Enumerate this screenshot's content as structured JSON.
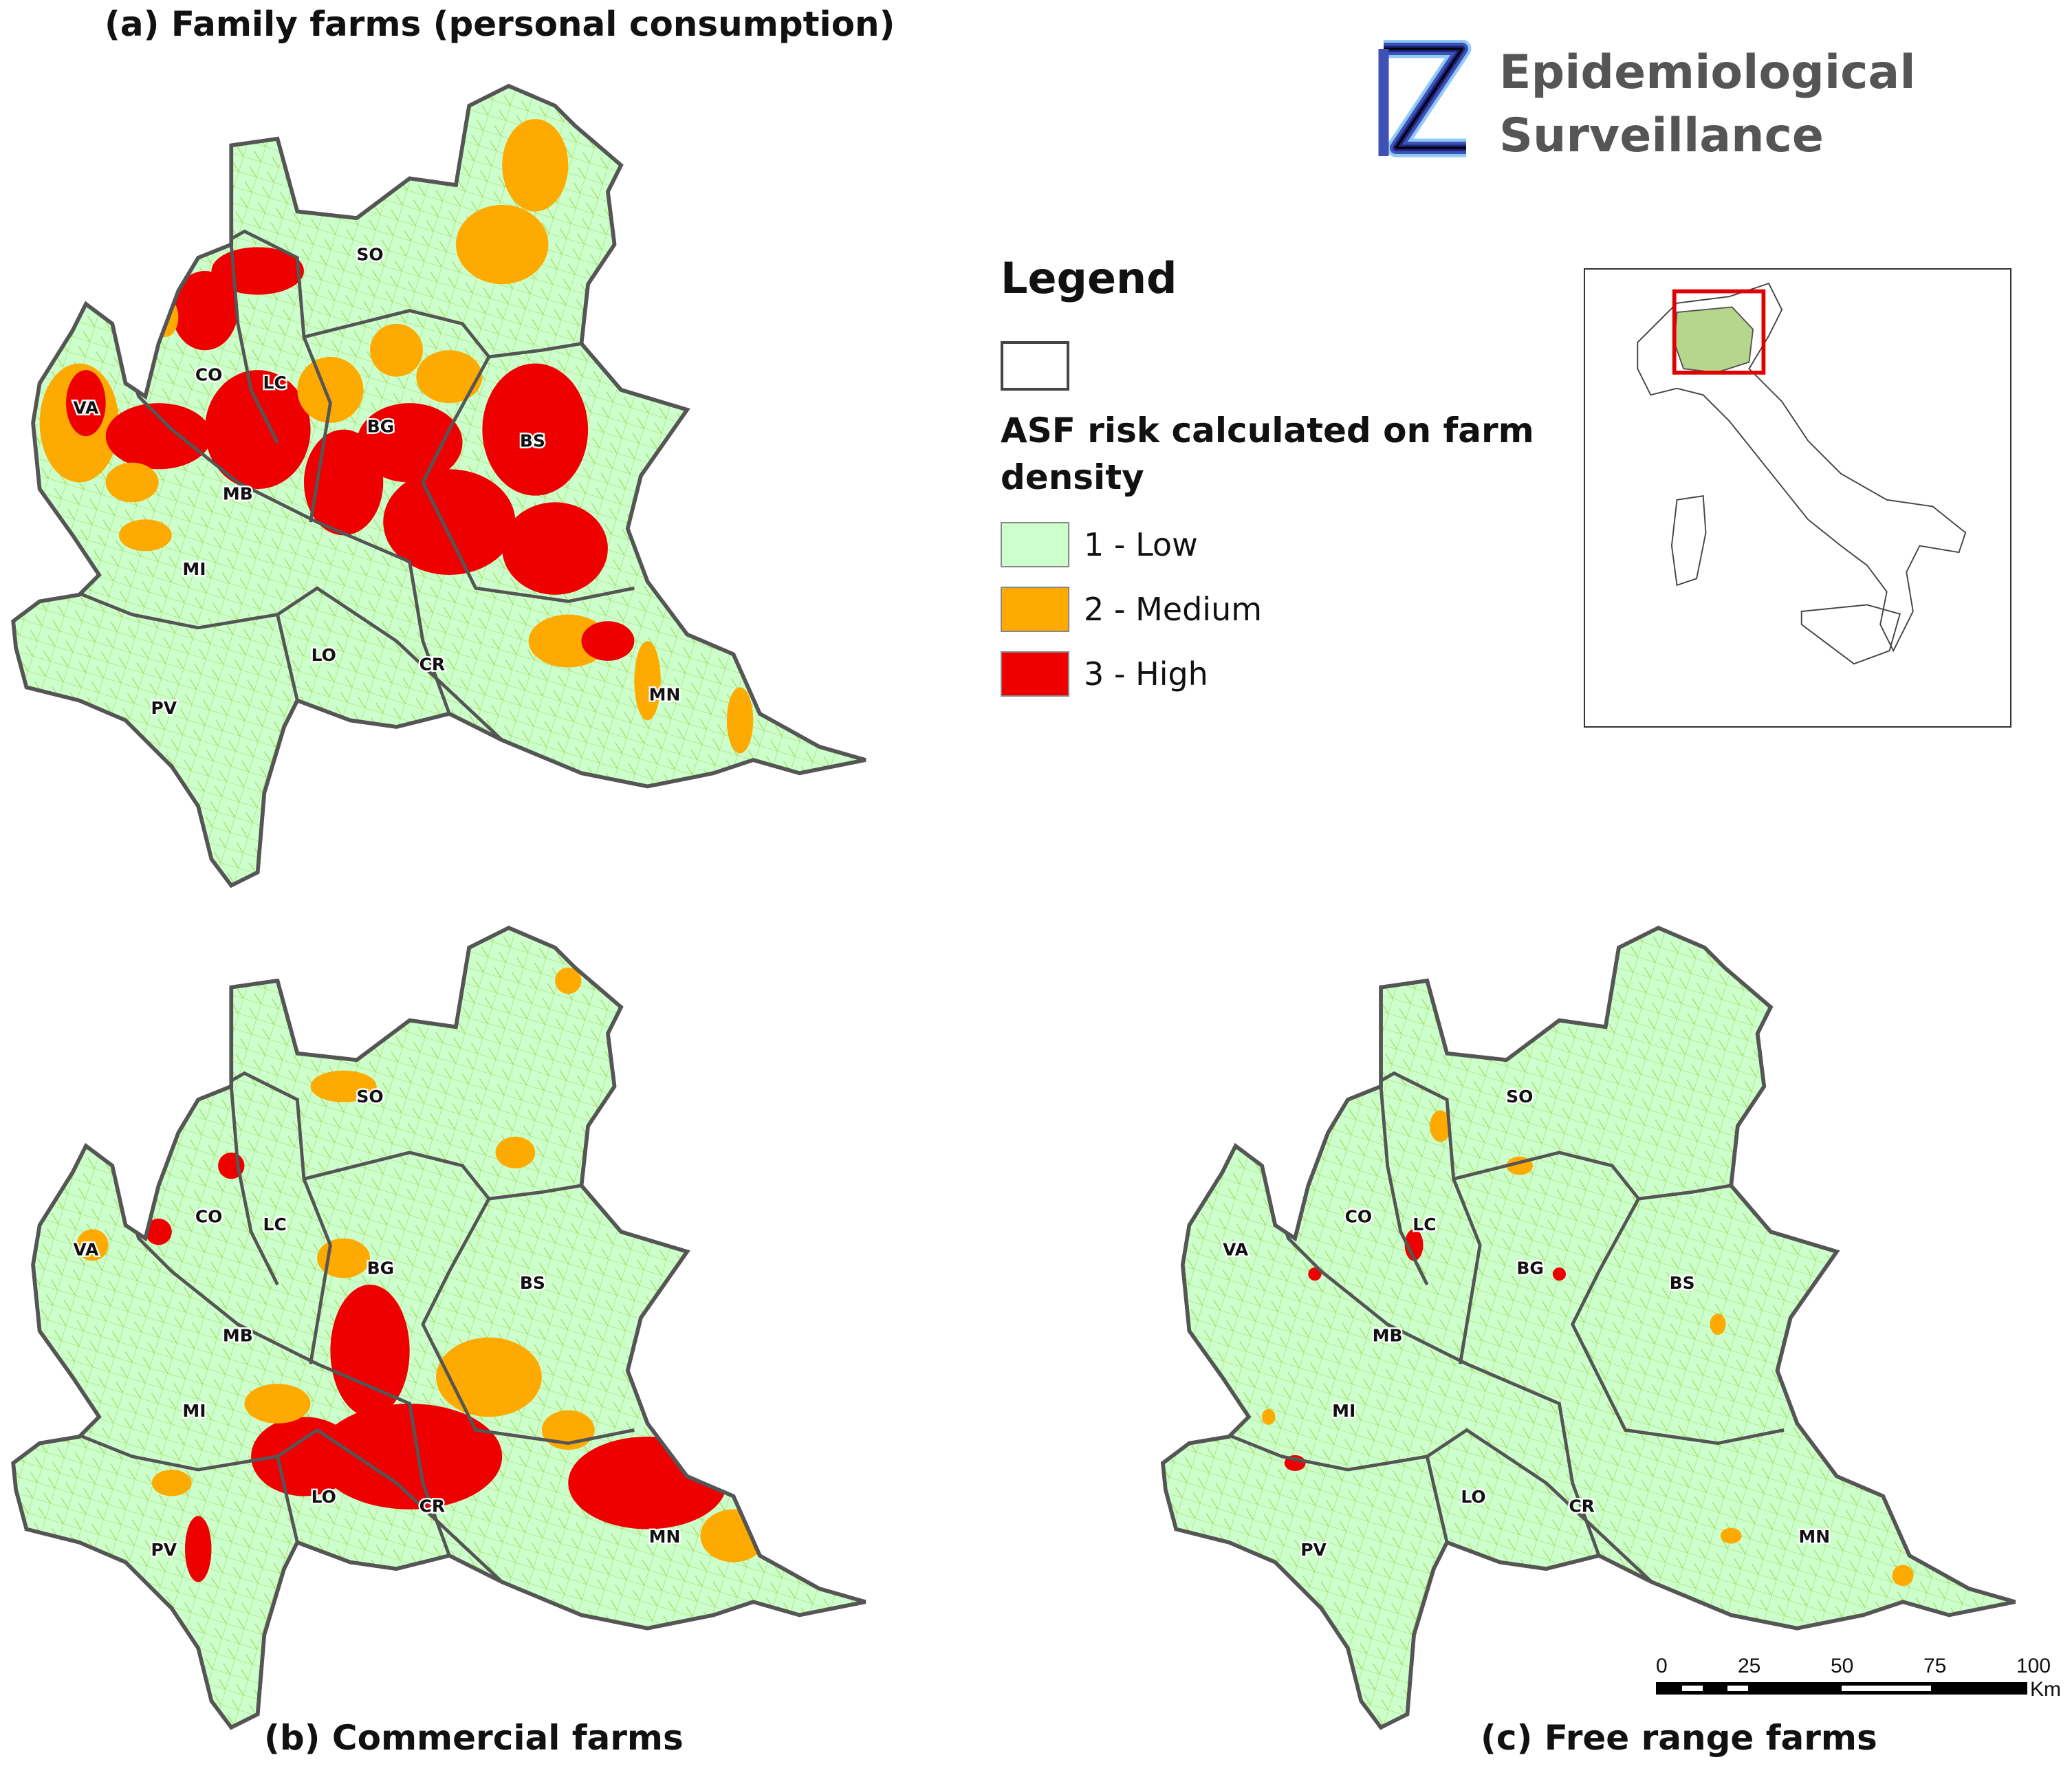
{
  "panels": [
    {
      "id": "a",
      "title": "(a) Family farms (personal consumption)"
    },
    {
      "id": "b",
      "title": "(b) Commercial farms"
    },
    {
      "id": "c",
      "title": "(c) Free range farms"
    }
  ],
  "logo": {
    "line1": "Epidemiological",
    "line2": "Surveillance",
    "colors": [
      "#1a237e",
      "#3f51b5",
      "#90caf9",
      "#000000"
    ]
  },
  "legend": {
    "title": "Legend",
    "boundary_label": "",
    "subtitle": "ASF risk calculated on farm density",
    "classes": [
      {
        "label": "1 - Low",
        "color": "#ccffcc"
      },
      {
        "label": "2 - Medium",
        "color": "#ffaa00"
      },
      {
        "label": "3 - High",
        "color": "#ee0000"
      }
    ]
  },
  "provinces": [
    "SO",
    "CO",
    "LC",
    "VA",
    "BG",
    "BS",
    "MB",
    "MI",
    "LO",
    "CR",
    "MN",
    "PV"
  ],
  "scale_bar": {
    "ticks": [
      "0",
      "25",
      "50",
      "75",
      "100"
    ],
    "unit": "Km"
  },
  "inset": {
    "region": "Lombardy",
    "highlight_color": "#e00000",
    "fill": "#b5d68c"
  },
  "colors": {
    "boundary": "#555555",
    "municipality": "#9ed65a"
  }
}
